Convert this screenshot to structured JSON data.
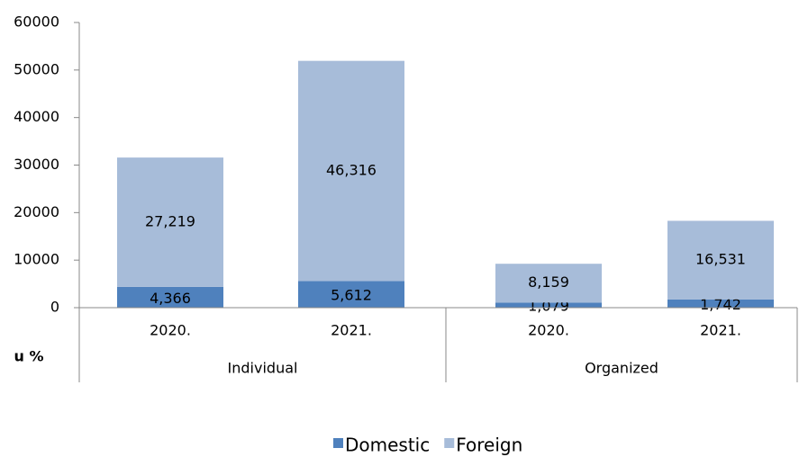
{
  "chart_data": {
    "type": "stacked-bar",
    "categories": [
      "2020.",
      "2021.",
      "2020.",
      "2021."
    ],
    "groups": [
      "Individual",
      "Organized"
    ],
    "axis_note": "u %",
    "series": [
      {
        "name": "Domestic",
        "color": "#4f81bd",
        "values": [
          4366,
          5612,
          1079,
          1742
        ],
        "value_labels": [
          "4,366",
          "5,612",
          "1,079",
          "1,742"
        ]
      },
      {
        "name": "Foreign",
        "color": "#a7bcd9",
        "values": [
          27219,
          46316,
          8159,
          16531
        ],
        "value_labels": [
          "27,219",
          "46,316",
          "8,159",
          "16,531"
        ]
      }
    ],
    "ylim": [
      0,
      60000
    ],
    "yticks": [
      0,
      10000,
      20000,
      30000,
      40000,
      50000,
      60000
    ],
    "legend": "bottom"
  }
}
